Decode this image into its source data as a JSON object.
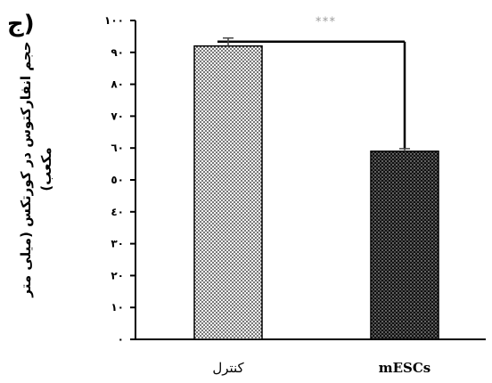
{
  "panel_label": "(ج",
  "chart_data": {
    "type": "bar",
    "title": "",
    "xlabel": "",
    "ylabel": "حجم انفارکتوس در کورتکس (میلی متر مکعب)",
    "ylim": [
      0,
      100
    ],
    "yticks": [
      0,
      10,
      20,
      30,
      40,
      50,
      60,
      70,
      80,
      90,
      100
    ],
    "ytick_labels": [
      "٠",
      "١٠",
      "٢٠",
      "٣٠",
      "٤٠",
      "٥٠",
      "٦٠",
      "٧٠",
      "٨٠",
      "٩٠",
      "١٠٠"
    ],
    "categories": [
      "کنترل",
      "mESCs"
    ],
    "values": [
      92,
      59
    ],
    "errors": [
      2.5,
      0.8
    ],
    "bar_patterns": [
      "light-dotted",
      "dark-dotted"
    ],
    "significance": {
      "from": 0,
      "to": 1,
      "label": "***"
    },
    "grid": false,
    "colors": {
      "bar_light_bg": "#f2f2f2",
      "bar_dark_bg": "#1a1a1a",
      "axis": "#000000",
      "sig_text": "#9a9a9a"
    }
  }
}
